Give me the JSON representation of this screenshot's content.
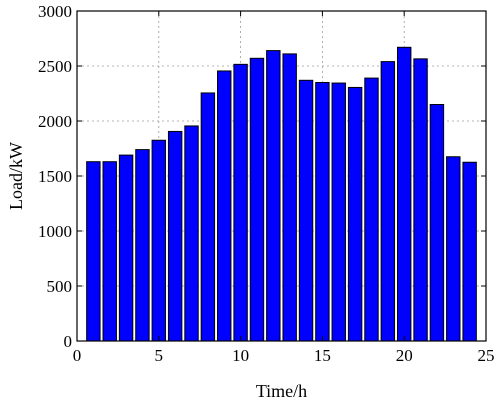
{
  "chart_data": {
    "type": "bar",
    "title": "",
    "xlabel": "Time/h",
    "ylabel": "Load/kW",
    "xlim": [
      0,
      25
    ],
    "ylim": [
      0,
      3000
    ],
    "xticks": [
      0,
      5,
      10,
      15,
      20,
      25
    ],
    "yticks": [
      0,
      500,
      1000,
      1500,
      2000,
      2500,
      3000
    ],
    "grid": true,
    "bar_color": "#0000ff",
    "x": [
      1,
      2,
      3,
      4,
      5,
      6,
      7,
      8,
      9,
      10,
      11,
      12,
      13,
      14,
      15,
      16,
      17,
      18,
      19,
      20,
      21,
      22,
      23,
      24
    ],
    "values": [
      1630,
      1630,
      1690,
      1740,
      1825,
      1905,
      1955,
      2255,
      2455,
      2515,
      2570,
      2640,
      2610,
      2370,
      2350,
      2345,
      2305,
      2390,
      2540,
      2670,
      2565,
      2150,
      1675,
      1625
    ]
  }
}
